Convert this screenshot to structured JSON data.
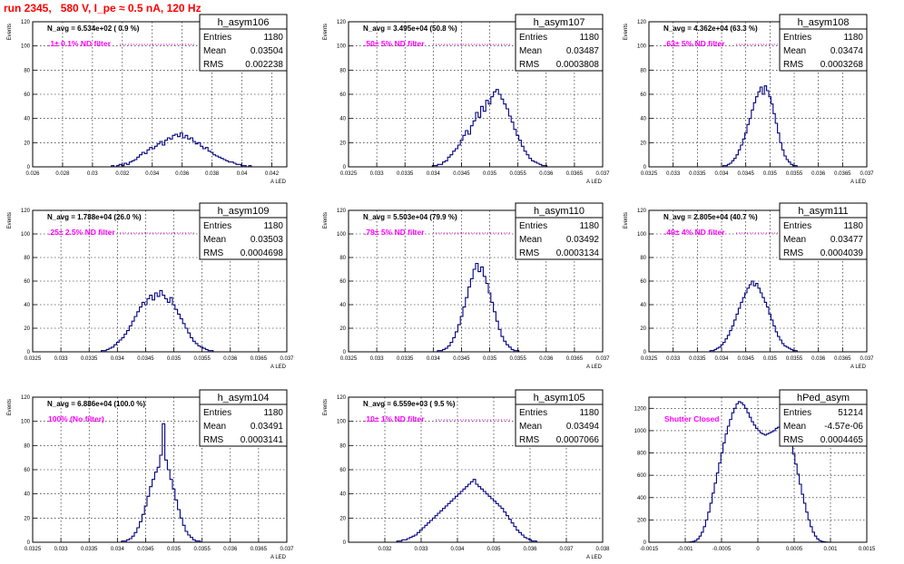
{
  "title": "run 2345,   580 V, I_pe ≈ 0.5 nA, 120 Hz",
  "chart_data": [
    {
      "type": "histogram",
      "name": "h_asym106",
      "annotation": "N_avg = 6.534e+02 ( 0.9 %)",
      "filter": ".1± 0.1% ND filter",
      "stats": {
        "entries": "1180",
        "mean": "0.03504",
        "rms": "0.002238"
      },
      "xlabel": "A_LED",
      "ylabel": "Events",
      "xlim": [
        0.026,
        0.043
      ],
      "ylim": [
        0,
        120
      ],
      "xticks": [
        "0.026",
        "0.028",
        "0.03",
        "0.032",
        "0.034",
        "0.036",
        "0.038",
        "0.04",
        "0.042"
      ],
      "xtickvals": [
        0.026,
        0.028,
        0.03,
        0.032,
        0.034,
        0.036,
        0.038,
        0.04,
        0.042
      ],
      "yticks": [
        0,
        20,
        40,
        60,
        80,
        100,
        120
      ],
      "binning": [
        0.026,
        0.043,
        100
      ],
      "values": [
        0,
        0,
        0,
        0,
        0,
        0,
        0,
        0,
        0,
        0,
        0,
        0,
        0,
        0,
        0,
        0,
        0,
        0,
        0,
        0,
        0,
        0,
        0,
        0,
        0,
        0,
        0,
        0,
        0,
        0,
        0,
        1,
        0,
        1,
        2,
        1,
        3,
        2,
        4,
        5,
        6,
        8,
        10,
        12,
        11,
        14,
        16,
        15,
        17,
        19,
        21,
        18,
        22,
        24,
        23,
        26,
        27,
        25,
        28,
        24,
        26,
        23,
        24,
        21,
        19,
        20,
        17,
        15,
        16,
        13,
        12,
        10,
        9,
        8,
        7,
        6,
        5,
        4,
        4,
        3,
        2,
        2,
        1,
        1,
        0,
        1,
        0,
        0,
        0,
        0,
        0,
        0,
        0,
        0,
        0,
        0,
        0,
        0,
        0,
        0
      ]
    },
    {
      "type": "histogram",
      "name": "h_asym107",
      "annotation": "N_avg = 3.495e+04 (50.8 %)",
      "filter": ".50± 5% ND filter",
      "stats": {
        "entries": "1180",
        "mean": "0.03487",
        "rms": "0.0003808"
      },
      "xlabel": "A_LED",
      "ylabel": "Events",
      "xlim": [
        0.0325,
        0.037
      ],
      "ylim": [
        0,
        120
      ],
      "xticks": [
        "0.0325",
        "0.033",
        "0.0335",
        "0.034",
        "0.0345",
        "0.035",
        "0.0355",
        "0.036",
        "0.0365",
        "0.037"
      ],
      "xtickvals": [
        0.0325,
        0.033,
        0.0335,
        0.034,
        0.0345,
        0.035,
        0.0355,
        0.036,
        0.0365,
        0.037
      ],
      "yticks": [
        0,
        20,
        40,
        60,
        80,
        100,
        120
      ],
      "binning": [
        0.0325,
        0.037,
        100
      ],
      "values": [
        0,
        0,
        0,
        0,
        0,
        0,
        0,
        0,
        0,
        0,
        0,
        0,
        0,
        0,
        0,
        0,
        0,
        0,
        0,
        0,
        0,
        0,
        0,
        0,
        0,
        0,
        0,
        0,
        0,
        0,
        0,
        0,
        0,
        1,
        1,
        2,
        2,
        4,
        5,
        8,
        10,
        13,
        15,
        18,
        22,
        26,
        30,
        27,
        34,
        38,
        45,
        41,
        50,
        46,
        55,
        52,
        58,
        62,
        64,
        60,
        56,
        52,
        48,
        42,
        37,
        31,
        26,
        22,
        17,
        13,
        10,
        7,
        5,
        4,
        3,
        2,
        1,
        1,
        0,
        0,
        0,
        0,
        0,
        0,
        0,
        0,
        0,
        0,
        0,
        0,
        0,
        0,
        0,
        0,
        0,
        0,
        0,
        0,
        0,
        0
      ]
    },
    {
      "type": "histogram",
      "name": "h_asym108",
      "annotation": "N_avg = 4.362e+04 (63.3 %)",
      "filter": ".63± 5% ND filter",
      "stats": {
        "entries": "1180",
        "mean": "0.03474",
        "rms": "0.0003268"
      },
      "xlabel": "A_LED",
      "ylabel": "Events",
      "xlim": [
        0.0325,
        0.037
      ],
      "ylim": [
        0,
        120
      ],
      "xticks": [
        "0.0325",
        "0.033",
        "0.0335",
        "0.034",
        "0.0345",
        "0.035",
        "0.0355",
        "0.036",
        "0.0365",
        "0.037"
      ],
      "xtickvals": [
        0.0325,
        0.033,
        0.0335,
        0.034,
        0.0345,
        0.035,
        0.0355,
        0.036,
        0.0365,
        0.037
      ],
      "yticks": [
        0,
        20,
        40,
        60,
        80,
        100,
        120
      ],
      "binning": [
        0.0325,
        0.037,
        100
      ],
      "values": [
        0,
        0,
        0,
        0,
        0,
        0,
        0,
        0,
        0,
        0,
        0,
        0,
        0,
        0,
        0,
        0,
        0,
        0,
        0,
        0,
        0,
        0,
        0,
        0,
        0,
        0,
        0,
        0,
        0,
        0,
        0,
        0,
        0,
        0,
        1,
        1,
        2,
        3,
        5,
        7,
        10,
        14,
        18,
        23,
        28,
        35,
        40,
        47,
        53,
        58,
        62,
        66,
        60,
        67,
        63,
        58,
        52,
        44,
        36,
        28,
        20,
        14,
        9,
        6,
        4,
        2,
        1,
        1,
        0,
        0,
        0,
        0,
        0,
        0,
        0,
        0,
        0,
        0,
        0,
        0,
        0,
        0,
        0,
        0,
        0,
        0,
        0,
        0,
        0,
        0,
        0,
        0,
        0,
        0,
        0,
        0,
        0,
        0,
        0,
        0
      ]
    },
    {
      "type": "histogram",
      "name": "h_asym109",
      "annotation": "N_avg = 1.788e+04 (26.0 %)",
      "filter": ".25± 2.5% ND filter",
      "stats": {
        "entries": "1180",
        "mean": "0.03503",
        "rms": "0.0004698"
      },
      "xlabel": "A_LED",
      "ylabel": "Events",
      "xlim": [
        0.0325,
        0.037
      ],
      "ylim": [
        0,
        120
      ],
      "xticks": [
        "0.0325",
        "0.033",
        "0.0335",
        "0.034",
        "0.0345",
        "0.035",
        "0.0355",
        "0.036",
        "0.0365",
        "0.037"
      ],
      "xtickvals": [
        0.0325,
        0.033,
        0.0335,
        0.034,
        0.0345,
        0.035,
        0.0355,
        0.036,
        0.0365,
        0.037
      ],
      "yticks": [
        0,
        20,
        40,
        60,
        80,
        100,
        120
      ],
      "binning": [
        0.0325,
        0.037,
        100
      ],
      "values": [
        0,
        0,
        0,
        0,
        0,
        0,
        0,
        0,
        0,
        0,
        0,
        0,
        0,
        0,
        0,
        0,
        0,
        0,
        0,
        0,
        0,
        0,
        0,
        0,
        0,
        0,
        0,
        1,
        1,
        2,
        3,
        4,
        6,
        8,
        10,
        12,
        15,
        18,
        22,
        26,
        30,
        34,
        38,
        42,
        40,
        45,
        48,
        44,
        50,
        47,
        52,
        48,
        45,
        42,
        46,
        40,
        36,
        32,
        28,
        24,
        20,
        16,
        12,
        9,
        7,
        5,
        4,
        3,
        2,
        1,
        1,
        0,
        0,
        0,
        0,
        0,
        0,
        0,
        0,
        0,
        0,
        0,
        0,
        0,
        0,
        0,
        0,
        0,
        0,
        0,
        0,
        0,
        0,
        0,
        0,
        0,
        0,
        0,
        0,
        0
      ]
    },
    {
      "type": "histogram",
      "name": "h_asym110",
      "annotation": "N_avg = 5.503e+04 (79.9 %)",
      "filter": ".79± 5% ND filter",
      "stats": {
        "entries": "1180",
        "mean": "0.03492",
        "rms": "0.0003134"
      },
      "xlabel": "A_LED",
      "ylabel": "Events",
      "xlim": [
        0.0325,
        0.037
      ],
      "ylim": [
        0,
        120
      ],
      "xticks": [
        "0.0325",
        "0.033",
        "0.0335",
        "0.034",
        "0.0345",
        "0.035",
        "0.0355",
        "0.036",
        "0.0365",
        "0.037"
      ],
      "xtickvals": [
        0.0325,
        0.033,
        0.0335,
        0.034,
        0.0345,
        0.035,
        0.0355,
        0.036,
        0.0365,
        0.037
      ],
      "yticks": [
        0,
        20,
        40,
        60,
        80,
        100,
        120
      ],
      "binning": [
        0.0325,
        0.037,
        100
      ],
      "values": [
        0,
        0,
        0,
        0,
        0,
        0,
        0,
        0,
        0,
        0,
        0,
        0,
        0,
        0,
        0,
        0,
        0,
        0,
        0,
        0,
        0,
        0,
        0,
        0,
        0,
        0,
        0,
        0,
        0,
        0,
        0,
        0,
        0,
        0,
        0,
        1,
        1,
        2,
        3,
        5,
        8,
        12,
        17,
        23,
        30,
        38,
        46,
        55,
        62,
        70,
        75,
        68,
        72,
        64,
        58,
        50,
        42,
        34,
        26,
        19,
        13,
        9,
        6,
        4,
        2,
        1,
        1,
        0,
        0,
        0,
        0,
        0,
        0,
        0,
        0,
        0,
        0,
        0,
        0,
        0,
        0,
        0,
        0,
        0,
        0,
        0,
        0,
        0,
        0,
        0,
        0,
        0,
        0,
        0,
        0,
        0,
        0,
        0,
        0,
        0
      ]
    },
    {
      "type": "histogram",
      "name": "h_asym111",
      "annotation": "N_avg = 2.805e+04 (40.7 %)",
      "filter": ".40± 4% ND filter",
      "stats": {
        "entries": "1180",
        "mean": "0.03477",
        "rms": "0.0004039"
      },
      "xlabel": "A_LED",
      "ylabel": "Events",
      "xlim": [
        0.0325,
        0.037
      ],
      "ylim": [
        0,
        120
      ],
      "xticks": [
        "0.0325",
        "0.033",
        "0.0335",
        "0.034",
        "0.0345",
        "0.035",
        "0.0355",
        "0.036",
        "0.0365",
        "0.037"
      ],
      "xtickvals": [
        0.0325,
        0.033,
        0.0335,
        0.034,
        0.0345,
        0.035,
        0.0355,
        0.036,
        0.0365,
        0.037
      ],
      "yticks": [
        0,
        20,
        40,
        60,
        80,
        100,
        120
      ],
      "binning": [
        0.0325,
        0.037,
        100
      ],
      "values": [
        0,
        0,
        0,
        0,
        0,
        0,
        0,
        0,
        0,
        0,
        0,
        0,
        0,
        0,
        0,
        0,
        0,
        0,
        0,
        0,
        0,
        0,
        0,
        0,
        0,
        0,
        0,
        0,
        1,
        1,
        2,
        3,
        4,
        6,
        8,
        11,
        14,
        18,
        22,
        27,
        32,
        37,
        42,
        46,
        50,
        54,
        57,
        60,
        56,
        58,
        54,
        50,
        46,
        42,
        38,
        32,
        27,
        22,
        17,
        13,
        10,
        7,
        5,
        4,
        3,
        2,
        1,
        1,
        0,
        0,
        0,
        0,
        0,
        0,
        0,
        0,
        0,
        0,
        0,
        0,
        0,
        0,
        0,
        0,
        0,
        0,
        0,
        0,
        0,
        0,
        0,
        0,
        0,
        0,
        0,
        0,
        0,
        0,
        0,
        0
      ]
    },
    {
      "type": "histogram",
      "name": "h_asym104",
      "annotation": "N_avg = 6.886e+04 (100.0 %)",
      "filter": "100% (No filter)",
      "stats": {
        "entries": "1180",
        "mean": "0.03491",
        "rms": "0.0003141"
      },
      "xlabel": "A_LED",
      "ylabel": "Events",
      "xlim": [
        0.0325,
        0.037
      ],
      "ylim": [
        0,
        120
      ],
      "xticks": [
        "0.0325",
        "0.033",
        "0.0335",
        "0.034",
        "0.0345",
        "0.035",
        "0.0355",
        "0.036",
        "0.0365",
        "0.037"
      ],
      "xtickvals": [
        0.0325,
        0.033,
        0.0335,
        0.034,
        0.0345,
        0.035,
        0.0355,
        0.036,
        0.0365,
        0.037
      ],
      "yticks": [
        0,
        20,
        40,
        60,
        80,
        100,
        120
      ],
      "binning": [
        0.0325,
        0.037,
        100
      ],
      "values": [
        0,
        0,
        0,
        0,
        0,
        0,
        0,
        0,
        0,
        0,
        0,
        0,
        0,
        0,
        0,
        0,
        0,
        0,
        0,
        0,
        0,
        0,
        0,
        0,
        0,
        0,
        0,
        0,
        0,
        0,
        0,
        0,
        0,
        0,
        0,
        1,
        1,
        2,
        3,
        5,
        8,
        12,
        17,
        23,
        30,
        38,
        46,
        52,
        58,
        62,
        72,
        98,
        68,
        60,
        52,
        44,
        35,
        27,
        20,
        14,
        9,
        6,
        4,
        2,
        1,
        1,
        0,
        0,
        0,
        0,
        0,
        0,
        0,
        0,
        0,
        0,
        0,
        0,
        0,
        0,
        0,
        0,
        0,
        0,
        0,
        0,
        0,
        0,
        0,
        0,
        0,
        0,
        0,
        0,
        0,
        0,
        0,
        0,
        0,
        0
      ]
    },
    {
      "type": "histogram",
      "name": "h_asym105",
      "annotation": "N_avg = 6.559e+03 ( 9.5 %)",
      "filter": ".10± 1% ND filter",
      "stats": {
        "entries": "1180",
        "mean": "0.03494",
        "rms": "0.0007066"
      },
      "xlabel": "A_LED",
      "ylabel": "Events",
      "xlim": [
        0.031,
        0.038
      ],
      "ylim": [
        0,
        120
      ],
      "xticks": [
        "0.032",
        "0.033",
        "0.034",
        "0.035",
        "0.036",
        "0.037",
        "0.038"
      ],
      "xtickvals": [
        0.032,
        0.033,
        0.034,
        0.035,
        0.036,
        0.037,
        0.038
      ],
      "yticks": [
        0,
        20,
        40,
        60,
        80,
        100,
        120
      ],
      "binning": [
        0.031,
        0.038,
        100
      ],
      "values": [
        0,
        0,
        0,
        0,
        0,
        0,
        0,
        0,
        0,
        0,
        0,
        0,
        0,
        0,
        0,
        0,
        0,
        0,
        0,
        1,
        1,
        2,
        2,
        3,
        4,
        5,
        6,
        8,
        10,
        12,
        14,
        16,
        18,
        20,
        22,
        24,
        26,
        28,
        30,
        32,
        34,
        36,
        38,
        40,
        42,
        44,
        46,
        48,
        50,
        52,
        48,
        46,
        44,
        42,
        40,
        38,
        36,
        34,
        32,
        30,
        28,
        25,
        22,
        19,
        16,
        13,
        10,
        8,
        6,
        4,
        3,
        2,
        1,
        1,
        0,
        0,
        0,
        0,
        0,
        0,
        0,
        0,
        0,
        0,
        0,
        0,
        0,
        0,
        0,
        0,
        0,
        0,
        0,
        0,
        0,
        0,
        0,
        0,
        0,
        0
      ]
    },
    {
      "type": "histogram",
      "name": "hPed_asym",
      "annotation": "",
      "filter": "Shutter Closed",
      "stats": {
        "entries": "51214",
        "mean": "-4.57e-06",
        "rms": "0.0004465"
      },
      "xlabel": "",
      "ylabel": "",
      "xlim": [
        -0.0015,
        0.0015
      ],
      "ylim": [
        0,
        1300
      ],
      "xticks": [
        "-0.0015",
        "-0.001",
        "-0.0005",
        "0",
        "0.0005",
        "0.001",
        "0.0015"
      ],
      "xtickvals": [
        -0.0015,
        -0.001,
        -0.0005,
        0,
        0.0005,
        0.001,
        0.0015
      ],
      "yticks": [
        0,
        200,
        400,
        600,
        800,
        1000,
        1200
      ],
      "binning": [
        -0.0015,
        0.0015,
        100
      ],
      "values": [
        0,
        0,
        0,
        0,
        0,
        0,
        0,
        0,
        0,
        0,
        0,
        0,
        0,
        0,
        0,
        0,
        0,
        1,
        2,
        4,
        8,
        15,
        30,
        55,
        90,
        140,
        200,
        270,
        350,
        440,
        530,
        620,
        710,
        800,
        890,
        970,
        1040,
        1100,
        1160,
        1200,
        1240,
        1260,
        1250,
        1230,
        1200,
        1160,
        1120,
        1080,
        1050,
        1020,
        1000,
        980,
        970,
        960,
        970,
        980,
        990,
        1000,
        1020,
        1030,
        1050,
        1060,
        1040,
        1000,
        940,
        870,
        790,
        700,
        610,
        520,
        430,
        350,
        270,
        200,
        140,
        90,
        55,
        30,
        15,
        8,
        4,
        2,
        1,
        0,
        0,
        0,
        0,
        0,
        0,
        0,
        0,
        0,
        0,
        0,
        0,
        0,
        0,
        0,
        0,
        0
      ]
    }
  ],
  "stat_labels": {
    "entries": "Entries",
    "mean": "Mean",
    "rms": "RMS"
  }
}
